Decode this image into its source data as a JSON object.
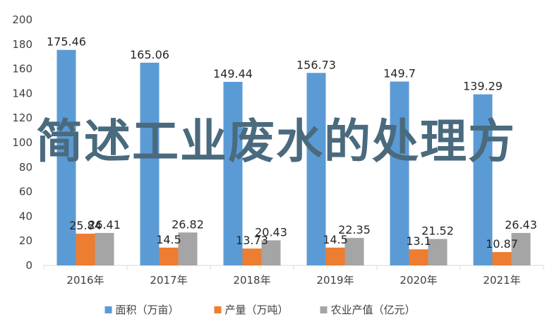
{
  "chart_data": {
    "type": "bar",
    "categories": [
      "2016年",
      "2017年",
      "2018年",
      "2019年",
      "2020年",
      "2021年"
    ],
    "series": [
      {
        "name": "面积（万亩）",
        "color": "#5b9bd5",
        "values": [
          175.46,
          165.06,
          149.44,
          156.73,
          149.7,
          139.29
        ]
      },
      {
        "name": "产量（万吨）",
        "color": "#ed7d31",
        "values": [
          25.84,
          14.5,
          13.73,
          14.5,
          13.1,
          10.87
        ]
      },
      {
        "name": "农业产值（亿元）",
        "color": "#a5a5a5",
        "values": [
          26.41,
          26.82,
          20.43,
          22.35,
          21.52,
          26.43
        ]
      }
    ],
    "ylim": [
      0,
      200
    ],
    "yticks": [
      0,
      20,
      40,
      60,
      80,
      100,
      120,
      140,
      160,
      180,
      200
    ],
    "grid": false,
    "legend_position": "bottom",
    "title": "",
    "xlabel": "",
    "ylabel": ""
  },
  "overlay_text": "简述工业废水的处理方"
}
